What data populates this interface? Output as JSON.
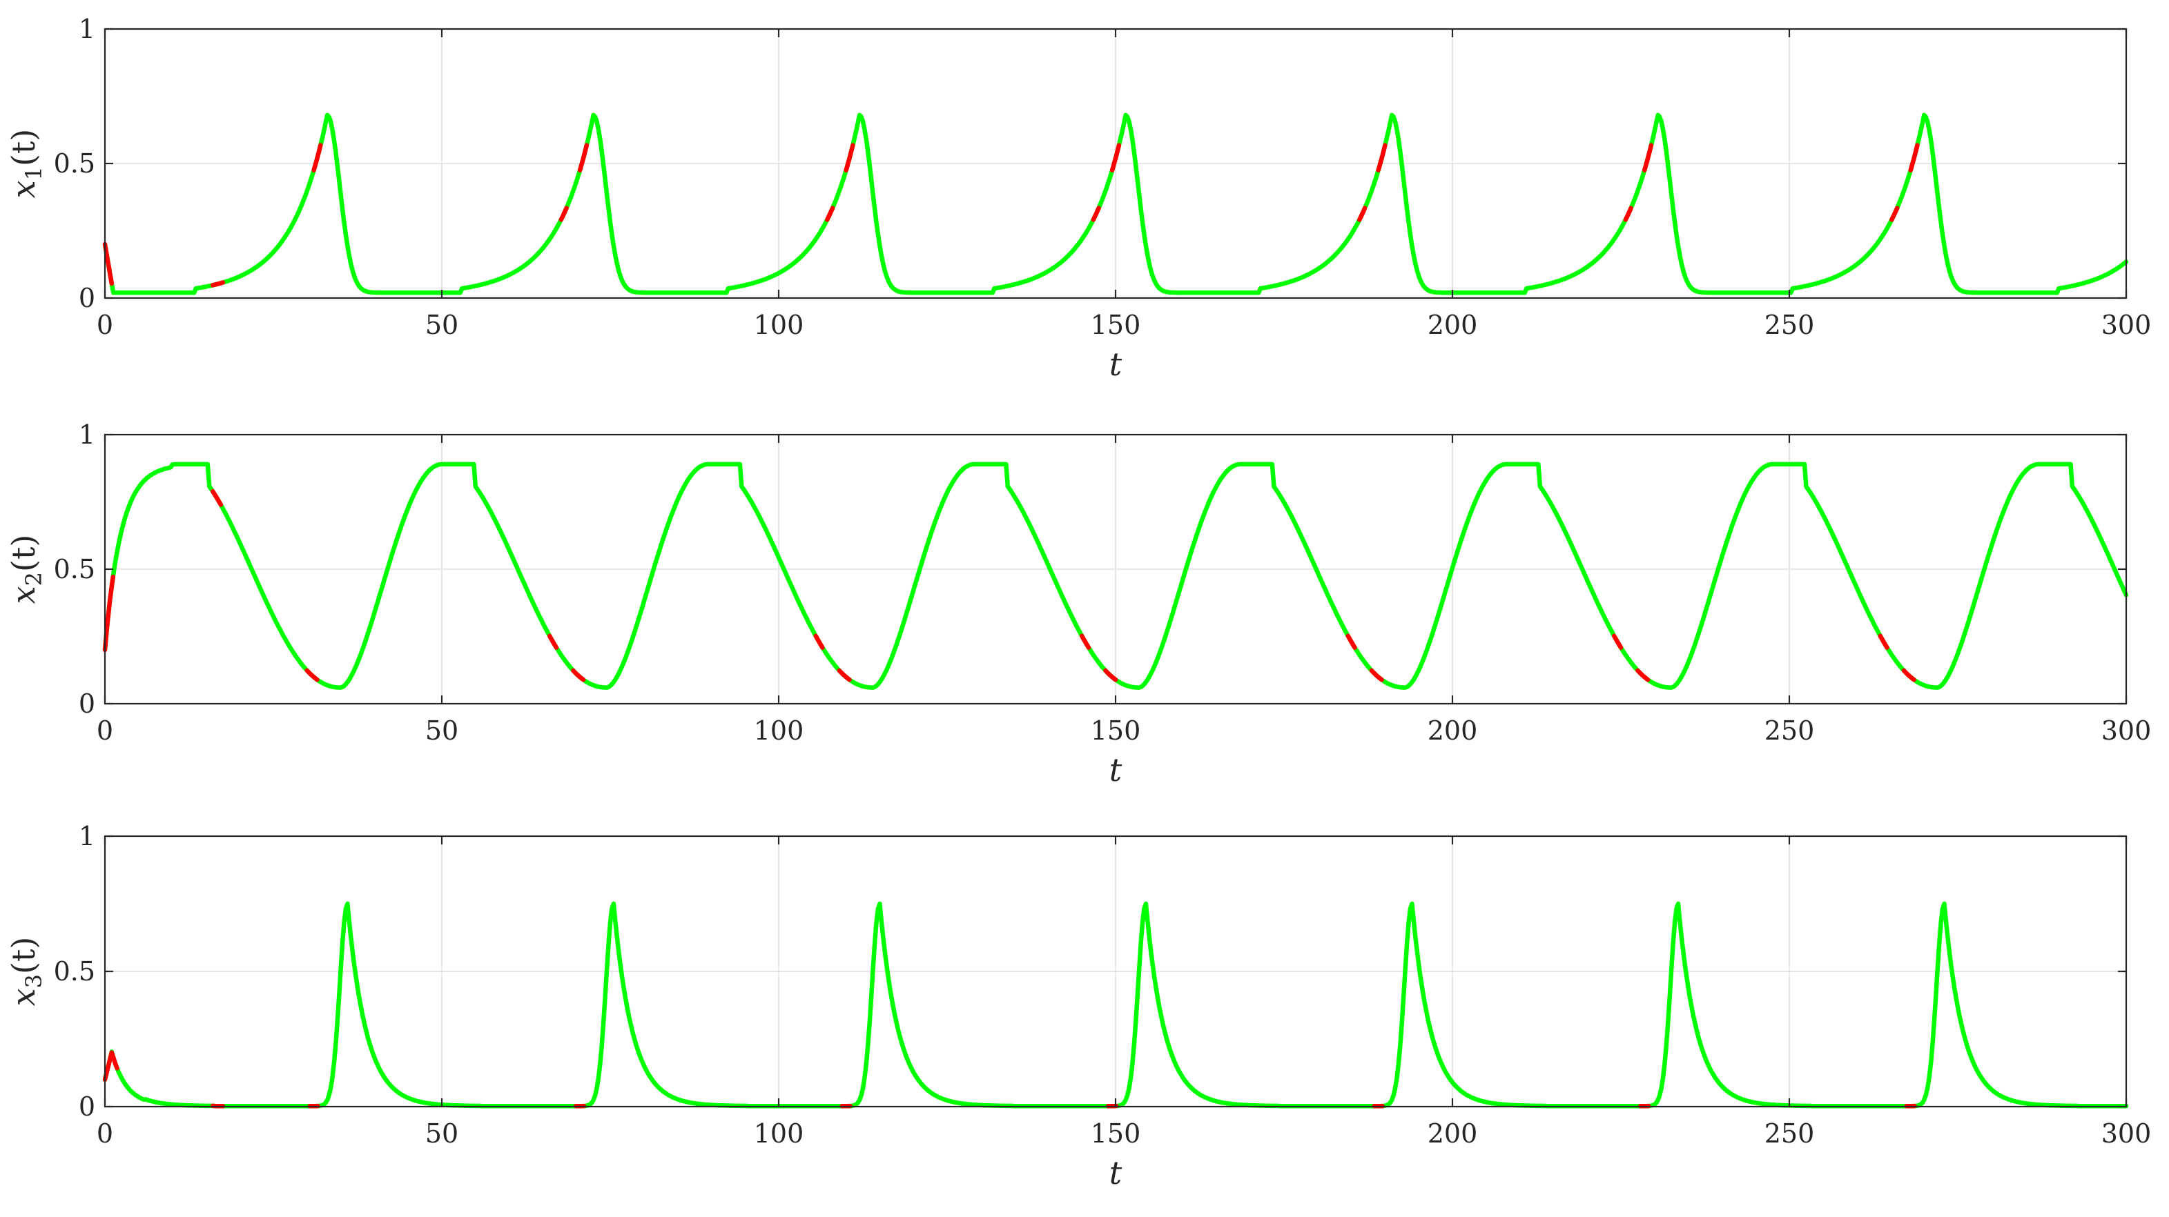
{
  "chart_data": [
    {
      "type": "line",
      "ylabel": {
        "var": "x",
        "sub": "1",
        "arg": "(t)"
      },
      "xlabel": "t",
      "xlim": [
        0,
        300
      ],
      "ylim": [
        0,
        1
      ],
      "xticks": [
        "0",
        "50",
        "100",
        "150",
        "200",
        "250",
        "300"
      ],
      "yticks": [
        "0",
        "0.5",
        "1"
      ],
      "grid": true,
      "colors": {
        "main": "#00ff00",
        "highlight": "#ff0000"
      },
      "initial_value": 0.2,
      "period": 39.5,
      "peak_value": 0.68,
      "first_peak_t": 33.0
    },
    {
      "type": "line",
      "ylabel": {
        "var": "x",
        "sub": "2",
        "arg": "(t)"
      },
      "xlabel": "t",
      "xlim": [
        0,
        300
      ],
      "ylim": [
        0,
        1
      ],
      "xticks": [
        "0",
        "50",
        "100",
        "150",
        "200",
        "250",
        "300"
      ],
      "yticks": [
        "0",
        "0.5",
        "1"
      ],
      "grid": true,
      "colors": {
        "main": "#00ff00",
        "highlight": "#ff0000"
      },
      "initial_value": 0.2,
      "period": 39.5,
      "peak_value": 0.89,
      "min_value": 0.06,
      "first_min_t": 35.0
    },
    {
      "type": "line",
      "ylabel": {
        "var": "x",
        "sub": "3",
        "arg": "(t)"
      },
      "xlabel": "t",
      "xlim": [
        0,
        300
      ],
      "ylim": [
        0,
        1
      ],
      "xticks": [
        "0",
        "50",
        "100",
        "150",
        "200",
        "250",
        "300"
      ],
      "yticks": [
        "0",
        "0.5",
        "1"
      ],
      "grid": true,
      "colors": {
        "main": "#00ff00",
        "highlight": "#ff0000"
      },
      "initial_value": 0.1,
      "period": 39.5,
      "peak_value": 0.75,
      "first_peak_t": 36.0
    }
  ]
}
